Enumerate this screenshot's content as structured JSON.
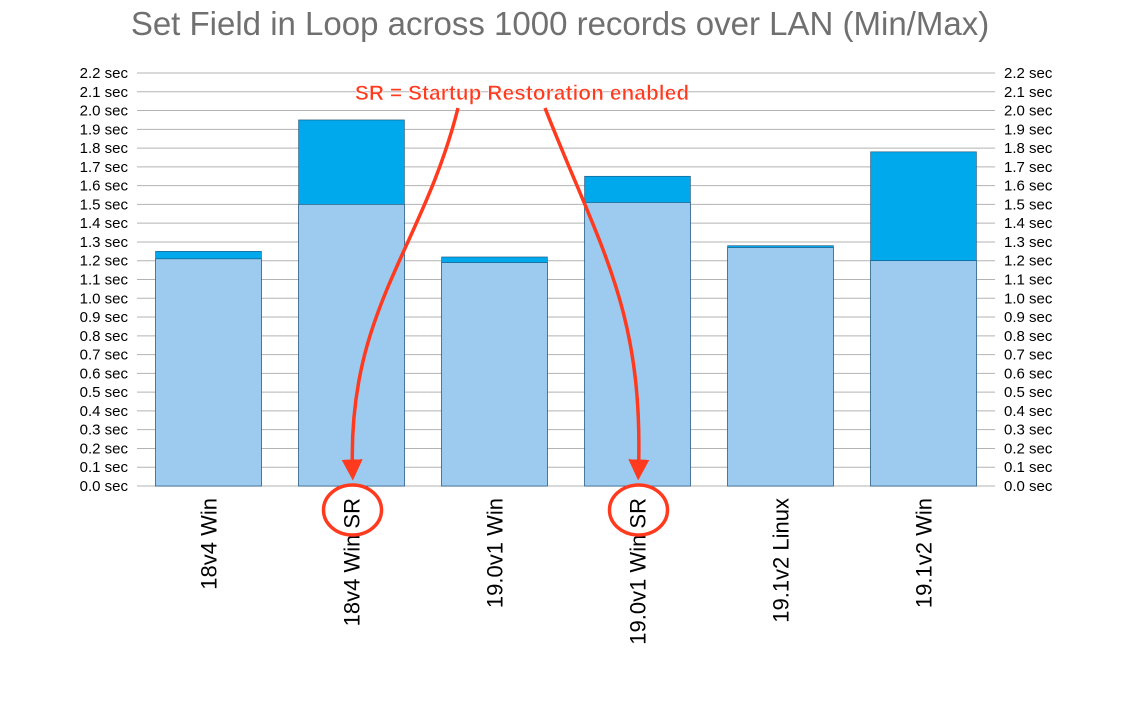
{
  "chart_data": {
    "type": "bar",
    "title": "Set Field in Loop across 1000 records over LAN (Min/Max)",
    "categories": [
      "18v4 Win",
      "18v4 Win SR",
      "19.0v1 Win",
      "19.0v1 Win SR",
      "19.1v2 Linux",
      "19.1v2 Win"
    ],
    "series": [
      {
        "name": "Min",
        "values": [
          1.21,
          1.5,
          1.19,
          1.51,
          1.27,
          1.2
        ]
      },
      {
        "name": "Max",
        "values": [
          1.25,
          1.95,
          1.22,
          1.65,
          1.28,
          1.78
        ]
      }
    ],
    "stacked_overlay": true,
    "ylim": [
      0,
      2.2
    ],
    "y_ticks": [
      "0.0 sec",
      "0.1 sec",
      "0.2 sec",
      "0.3 sec",
      "0.4 sec",
      "0.5 sec",
      "0.6 sec",
      "0.7 sec",
      "0.8 sec",
      "0.9 sec",
      "1.0 sec",
      "1.1 sec",
      "1.2 sec",
      "1.3 sec",
      "1.4 sec",
      "1.5 sec",
      "1.6 sec",
      "1.7 sec",
      "1.8 sec",
      "1.9 sec",
      "2.0 sec",
      "2.1 sec",
      "2.2 sec"
    ],
    "y_axis_both_sides": true,
    "grid": true,
    "colors": {
      "min": "#9ccbef",
      "max": "#00a9ec",
      "annotation": "#ff3a1e",
      "title": "#707070"
    },
    "annotation": {
      "text": "SR = Startup Restoration enabled",
      "targets": [
        "18v4 Win SR",
        "19.0v1 Win SR"
      ]
    }
  }
}
